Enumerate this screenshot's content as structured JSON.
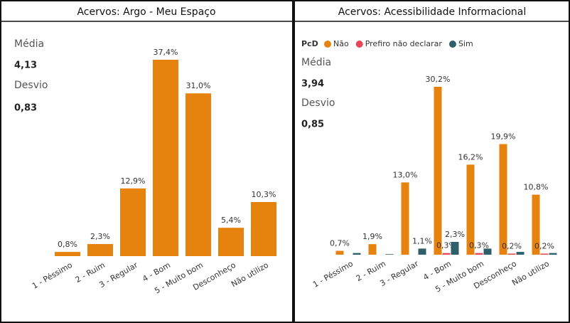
{
  "chart_data": [
    {
      "type": "bar",
      "title": "Acervos: Argo - Meu Espaço",
      "stats": [
        {
          "label": "Média",
          "value": "4,13"
        },
        {
          "label": "Desvio",
          "value": "0,83"
        }
      ],
      "categories": [
        "1 - Péssimo",
        "2 - Ruim",
        "3 - Regular",
        "4 - Bom",
        "5 - Muito bom",
        "Desconheço",
        "Não utilizo"
      ],
      "values": [
        0.8,
        2.3,
        12.9,
        37.4,
        31.0,
        5.4,
        10.3
      ],
      "value_labels": [
        "0,8%",
        "2,3%",
        "12,9%",
        "37,4%",
        "31,0%",
        "5,4%",
        "10,3%"
      ],
      "color": "#e6820e"
    },
    {
      "type": "grouped_bar",
      "title": "Acervos: Acessibilidade Informacional",
      "legend_title": "PcD",
      "stats": [
        {
          "label": "Média",
          "value": "3,94"
        },
        {
          "label": "Desvio",
          "value": "0,85"
        }
      ],
      "categories": [
        "1 - Péssimo",
        "2 - Ruim",
        "3 - Regular",
        "4 - Bom",
        "5 - Muito bom",
        "Desconheço",
        "Não utilizo"
      ],
      "series": [
        {
          "name": "Não",
          "color": "#e6820e",
          "values": [
            0.7,
            1.9,
            13.0,
            30.2,
            16.2,
            19.9,
            10.8
          ],
          "value_labels": [
            "0,7%",
            "1,9%",
            "13,0%",
            "30,2%",
            "16,2%",
            "19,9%",
            "10,8%"
          ]
        },
        {
          "name": "Prefiro não declarar",
          "color": "#e8465a",
          "values": [
            null,
            null,
            null,
            0.3,
            0.3,
            0.2,
            0.2
          ],
          "value_labels": [
            null,
            null,
            null,
            "0,3%",
            "0,3%",
            "0,2%",
            "0,2%"
          ]
        },
        {
          "name": "Sim",
          "color": "#2e5f6b",
          "values": [
            0.3,
            0.1,
            1.1,
            2.3,
            1.1,
            0.5,
            0.3
          ],
          "value_labels": [
            null,
            null,
            "1,1%",
            "2,3%",
            null,
            null,
            null
          ]
        }
      ]
    }
  ]
}
